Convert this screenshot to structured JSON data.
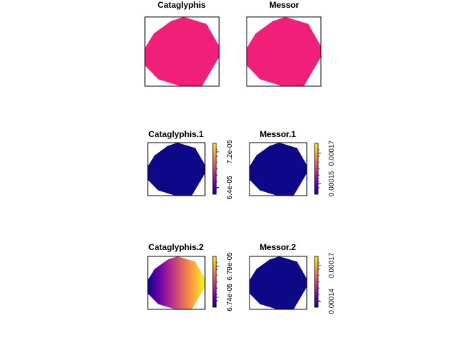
{
  "colors": {
    "uniform_fill": "#f0207a",
    "frame": "#000000",
    "palette": [
      "#0d0887",
      "#6a00a8",
      "#b12a90",
      "#e16462",
      "#fca636",
      "#f0f921"
    ]
  },
  "chart_data": [
    {
      "type": "heatmap",
      "title": "Cataglyphis",
      "fill": "uniform",
      "legend": "none"
    },
    {
      "type": "heatmap",
      "title": "Messor",
      "fill": "uniform",
      "legend": "none"
    },
    {
      "type": "heatmap",
      "title": "Cataglyphis.1",
      "gradient": {
        "low_side": "right",
        "high_side": "left"
      },
      "legend": {
        "position": "right",
        "ticks": [
          {
            "value": 6.4e-05,
            "label": "6.4e-05"
          },
          {
            "value": 7.2e-05,
            "label": "7.2e-05"
          }
        ],
        "range": [
          6.25e-05,
          7.39e-05
        ]
      }
    },
    {
      "type": "heatmap",
      "title": "Messor.1",
      "gradient": {
        "low_side": "right",
        "high_side": "left"
      },
      "legend": {
        "position": "right",
        "ticks": [
          {
            "value": 0.00015,
            "label": "0.00015"
          },
          {
            "value": 0.00017,
            "label": "0.00017"
          }
        ],
        "range": [
          0.000143,
          0.0001765
        ]
      }
    },
    {
      "type": "heatmap",
      "title": "Cataglyphis.2",
      "gradient": {
        "low_side": "left",
        "high_side": "right"
      },
      "legend": {
        "position": "right",
        "ticks": [
          {
            "value": 6.74e-05,
            "label": "6.74e-05"
          },
          {
            "value": 6.79e-05,
            "label": "6.79e-05"
          }
        ],
        "range": [
          6.724e-05,
          6.806e-05
        ]
      }
    },
    {
      "type": "heatmap",
      "title": "Messor.2",
      "gradient": {
        "low_side": "right",
        "high_side": "left"
      },
      "legend": {
        "position": "right",
        "ticks": [
          {
            "value": 0.00014,
            "label": "0.00014"
          },
          {
            "value": 0.00017,
            "label": "0.00017"
          }
        ],
        "range": [
          0.000135,
          0.0001775
        ]
      }
    }
  ]
}
